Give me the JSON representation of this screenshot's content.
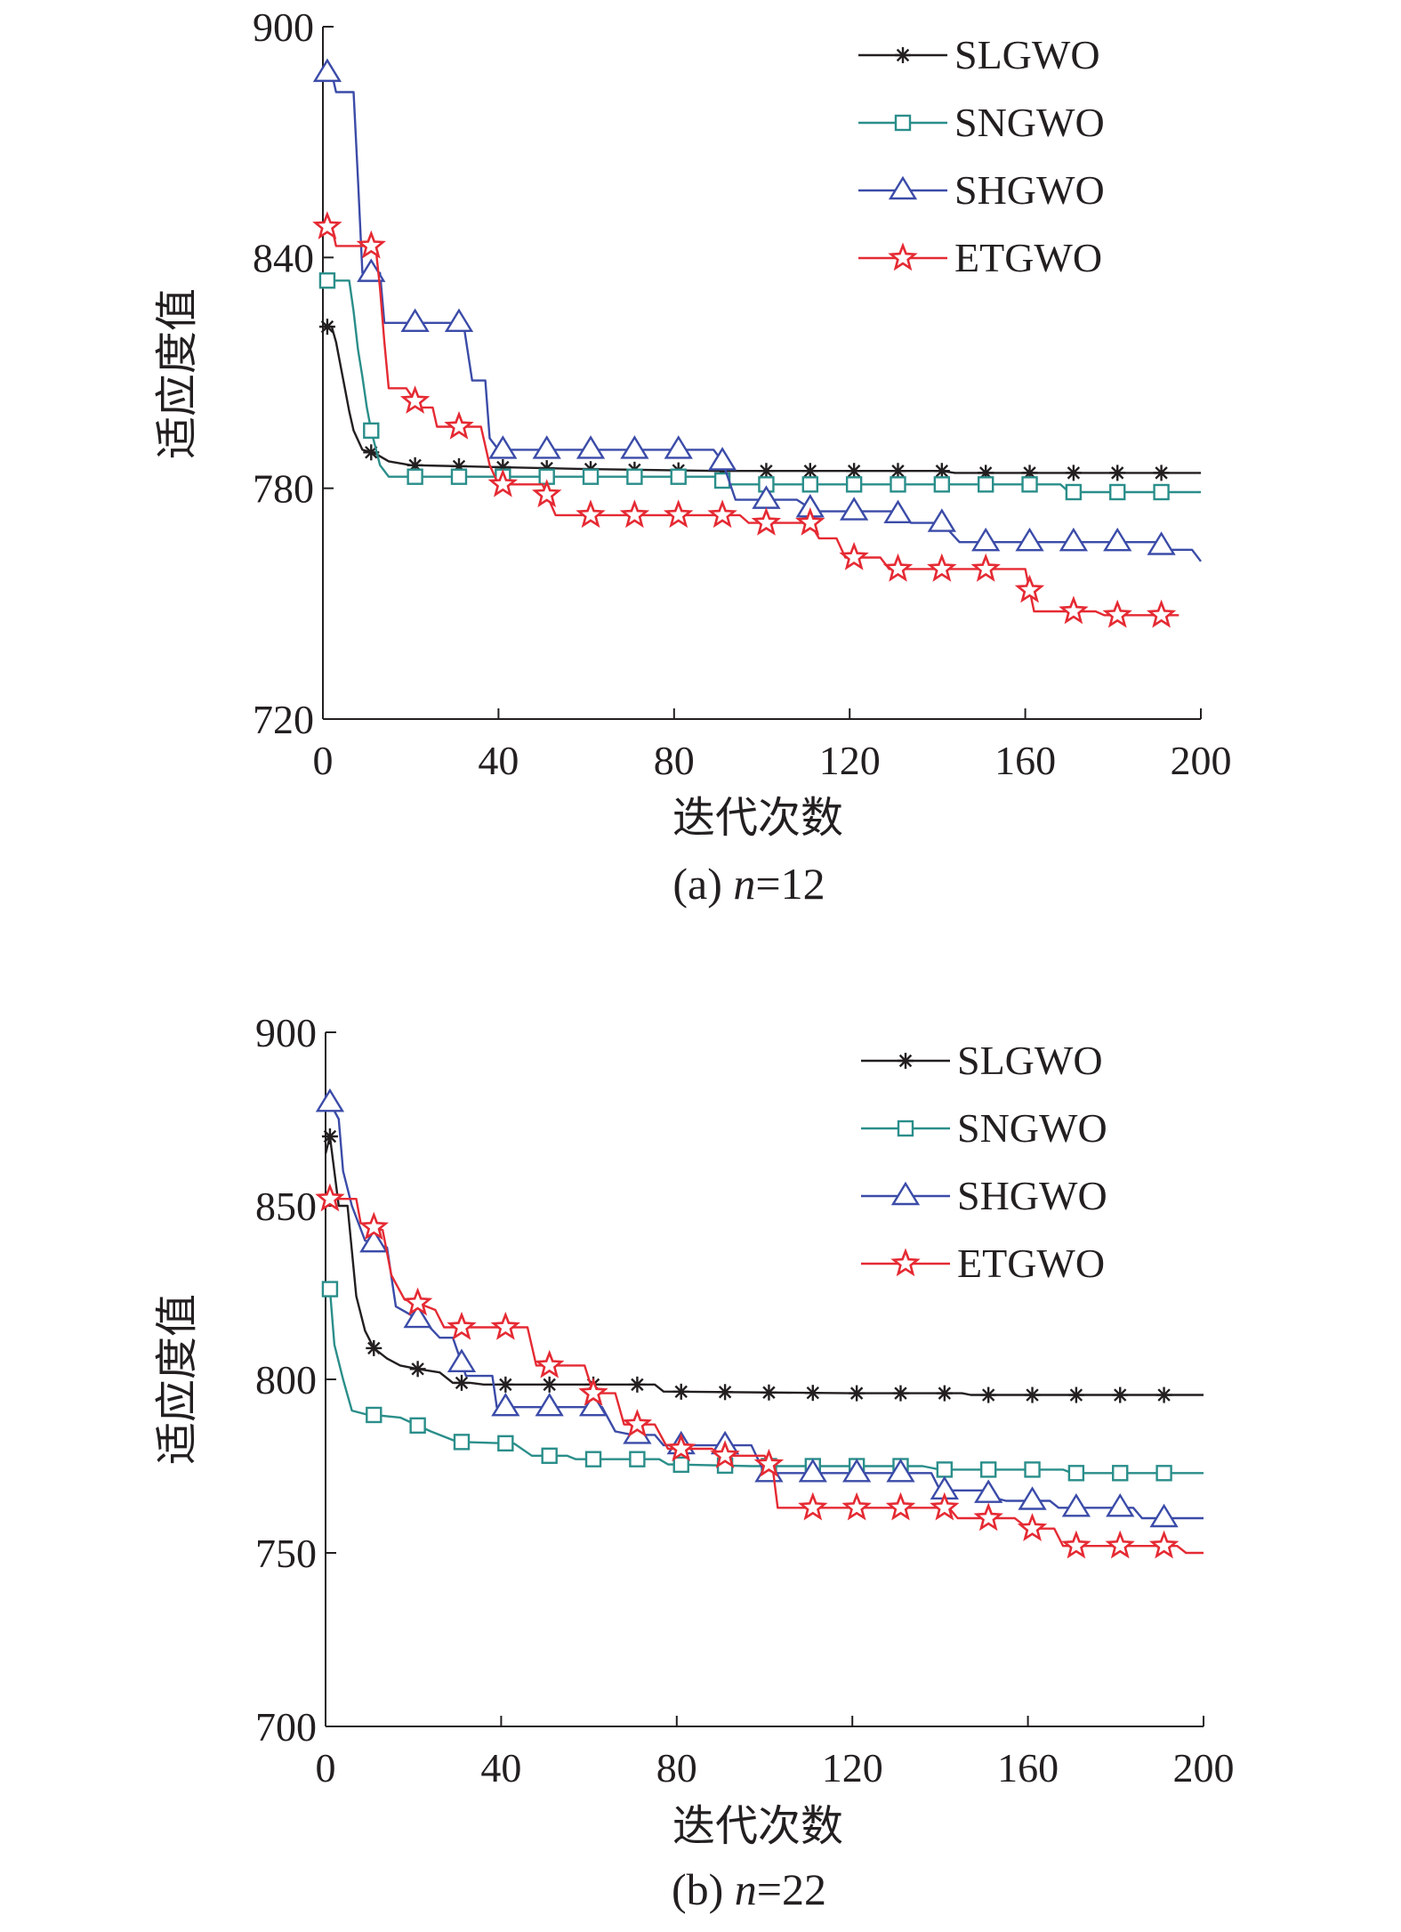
{
  "chart_data": [
    {
      "type": "line",
      "caption_prefix": "(a) ",
      "caption_var": "n",
      "caption_suffix": "=12",
      "xlabel": "迭代次数",
      "ylabel": "适应度值",
      "xlim": [
        0,
        200
      ],
      "ylim": [
        720,
        900
      ],
      "xticks": [
        0,
        40,
        80,
        120,
        160,
        200
      ],
      "yticks": [
        720,
        780,
        840,
        900
      ],
      "legend_position": "top-right",
      "marker_every": 10,
      "series": [
        {
          "name": "SLGWO",
          "color": "#231f20",
          "marker": "asterisk",
          "points": [
            [
              0,
              822
            ],
            [
              2,
              822
            ],
            [
              3,
              818
            ],
            [
              5,
              806
            ],
            [
              6,
              800
            ],
            [
              7,
              795
            ],
            [
              9,
              790
            ],
            [
              12,
              789
            ],
            [
              15,
              787
            ],
            [
              20,
              786
            ],
            [
              40,
              785.5
            ],
            [
              60,
              785
            ],
            [
              90,
              784.5
            ],
            [
              120,
              784.5
            ],
            [
              141,
              784.5
            ],
            [
              144,
              784
            ],
            [
              200,
              784
            ]
          ]
        },
        {
          "name": "SNGWO",
          "color": "#2a8e8a",
          "marker": "square",
          "points": [
            [
              0,
              834
            ],
            [
              6,
              834
            ],
            [
              7,
              826
            ],
            [
              8,
              816
            ],
            [
              9,
              809
            ],
            [
              10,
              801
            ],
            [
              11,
              795
            ],
            [
              13,
              786
            ],
            [
              15,
              783
            ],
            [
              90,
              783
            ],
            [
              92,
              781
            ],
            [
              168,
              781
            ],
            [
              170,
              779
            ],
            [
              200,
              779
            ]
          ]
        },
        {
          "name": "SHGWO",
          "color": "#3b4ba8",
          "marker": "triangle",
          "points": [
            [
              0,
              888
            ],
            [
              2,
              888
            ],
            [
              3,
              883
            ],
            [
              7,
              883
            ],
            [
              8,
              860
            ],
            [
              9,
              836
            ],
            [
              13,
              836
            ],
            [
              14,
              823
            ],
            [
              32,
              823
            ],
            [
              34,
              808
            ],
            [
              37,
              808
            ],
            [
              38,
              793
            ],
            [
              40,
              790
            ],
            [
              89,
              790
            ],
            [
              91,
              787
            ],
            [
              94,
              777
            ],
            [
              108,
              777
            ],
            [
              112,
              774
            ],
            [
              130,
              774
            ],
            [
              134,
              771
            ],
            [
              141,
              771
            ],
            [
              145,
              766
            ],
            [
              190,
              766
            ],
            [
              192,
              764
            ],
            [
              198,
              764
            ],
            [
              200,
              761
            ]
          ]
        },
        {
          "name": "ETGWO",
          "color": "#e52a33",
          "marker": "star",
          "points": [
            [
              0,
              848
            ],
            [
              2,
              848
            ],
            [
              3,
              843
            ],
            [
              12,
              843
            ],
            [
              13,
              832
            ],
            [
              14,
              818
            ],
            [
              15,
              806
            ],
            [
              19,
              806
            ],
            [
              22,
              801
            ],
            [
              25,
              801
            ],
            [
              26,
              796
            ],
            [
              36,
              796
            ],
            [
              38,
              786
            ],
            [
              40,
              781
            ],
            [
              50,
              781
            ],
            [
              53,
              773
            ],
            [
              95,
              773
            ],
            [
              97,
              771
            ],
            [
              111,
              771
            ],
            [
              113,
              767
            ],
            [
              117,
              767
            ],
            [
              119,
              762
            ],
            [
              127,
              762
            ],
            [
              129,
              759
            ],
            [
              160,
              759
            ],
            [
              162,
              748
            ],
            [
              176,
              748
            ],
            [
              178,
              747
            ],
            [
              195,
              747
            ]
          ]
        }
      ]
    },
    {
      "type": "line",
      "caption_prefix": "(b) ",
      "caption_var": "n",
      "caption_suffix": "=22",
      "xlabel": "迭代次数",
      "ylabel": "适应度值",
      "xlim": [
        0,
        200
      ],
      "ylim": [
        700,
        900
      ],
      "xticks": [
        0,
        40,
        80,
        120,
        160,
        200
      ],
      "yticks": [
        700,
        750,
        800,
        850,
        900
      ],
      "legend_position": "top-right",
      "marker_every": 10,
      "series": [
        {
          "name": "SLGWO",
          "color": "#231f20",
          "marker": "asterisk",
          "points": [
            [
              0,
              865
            ],
            [
              1,
              870
            ],
            [
              3,
              850
            ],
            [
              5,
              850
            ],
            [
              7,
              824
            ],
            [
              9,
              814
            ],
            [
              11,
              809
            ],
            [
              14,
              806
            ],
            [
              17,
              804
            ],
            [
              21,
              803
            ],
            [
              26,
              802
            ],
            [
              29,
              799
            ],
            [
              33,
              799
            ],
            [
              36,
              798.5
            ],
            [
              75,
              798.5
            ],
            [
              77,
              796.5
            ],
            [
              120,
              796
            ],
            [
              145,
              796
            ],
            [
              147,
              795.5
            ],
            [
              200,
              795.5
            ]
          ]
        },
        {
          "name": "SNGWO",
          "color": "#2a8e8a",
          "marker": "square",
          "points": [
            [
              0,
              826
            ],
            [
              1,
              826
            ],
            [
              2,
              810
            ],
            [
              4,
              800
            ],
            [
              6,
              791
            ],
            [
              9,
              790
            ],
            [
              17,
              789
            ],
            [
              24,
              785
            ],
            [
              30,
              782
            ],
            [
              43,
              781.5
            ],
            [
              47,
              778
            ],
            [
              55,
              778
            ],
            [
              57,
              777
            ],
            [
              76,
              777
            ],
            [
              78,
              775.5
            ],
            [
              97,
              775
            ],
            [
              136,
              775
            ],
            [
              140,
              774
            ],
            [
              168,
              774
            ],
            [
              170,
              773
            ],
            [
              200,
              773
            ]
          ]
        },
        {
          "name": "SHGWO",
          "color": "#3b4ba8",
          "marker": "triangle",
          "points": [
            [
              0,
              882
            ],
            [
              3,
              875
            ],
            [
              4,
              860
            ],
            [
              6,
              850
            ],
            [
              9,
              840
            ],
            [
              14,
              838
            ],
            [
              16,
              821
            ],
            [
              23,
              816
            ],
            [
              26,
              812
            ],
            [
              29,
              812
            ],
            [
              32,
              801
            ],
            [
              38,
              801
            ],
            [
              39,
              792
            ],
            [
              58,
              792
            ],
            [
              63,
              792
            ],
            [
              66,
              785
            ],
            [
              70,
              784
            ],
            [
              75,
              784
            ],
            [
              77,
              781
            ],
            [
              97,
              781
            ],
            [
              100,
              773
            ],
            [
              138,
              773
            ],
            [
              140,
              768
            ],
            [
              150,
              768
            ],
            [
              152,
              766
            ],
            [
              155,
              765
            ],
            [
              165,
              765
            ],
            [
              167,
              763
            ],
            [
              184,
              763
            ],
            [
              186,
              760
            ],
            [
              200,
              760
            ]
          ]
        },
        {
          "name": "ETGWO",
          "color": "#e52a33",
          "marker": "star",
          "points": [
            [
              0,
              852
            ],
            [
              7,
              852
            ],
            [
              8,
              845
            ],
            [
              13,
              843
            ],
            [
              15,
              830
            ],
            [
              18,
              823
            ],
            [
              21,
              822
            ],
            [
              25,
              820
            ],
            [
              27,
              815
            ],
            [
              46,
              815
            ],
            [
              48,
              804
            ],
            [
              59,
              804
            ],
            [
              61,
              796
            ],
            [
              66,
              796
            ],
            [
              68,
              787
            ],
            [
              75,
              787
            ],
            [
              78,
              780
            ],
            [
              88,
              780
            ],
            [
              91,
              778
            ],
            [
              100,
              778
            ],
            [
              102,
              773
            ],
            [
              103,
              763
            ],
            [
              142,
              763
            ],
            [
              144,
              760
            ],
            [
              157,
              760
            ],
            [
              160,
              757
            ],
            [
              166,
              757
            ],
            [
              168,
              752
            ],
            [
              194,
              752
            ],
            [
              196,
              750
            ],
            [
              200,
              750
            ]
          ]
        }
      ]
    }
  ]
}
